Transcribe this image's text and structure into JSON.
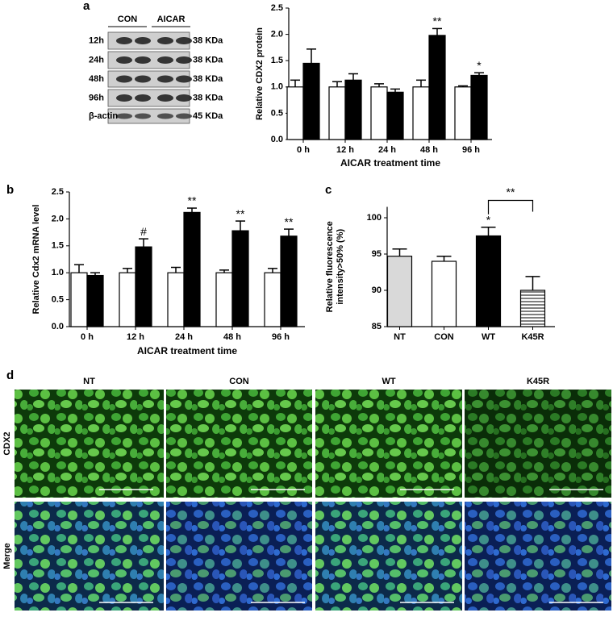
{
  "figure": {
    "panel_labels": [
      "a",
      "b",
      "c",
      "d"
    ],
    "blot": {
      "groups": [
        "CON",
        "AICAR"
      ],
      "rows": [
        "12h",
        "24h",
        "48h",
        "96h",
        "β-actin"
      ],
      "sizes": [
        "38 KDa",
        "38 KDa",
        "38 KDa",
        "38 KDa",
        "45 KDa"
      ]
    },
    "micrographs": {
      "columns": [
        "NT",
        "CON",
        "WT",
        "K45R"
      ],
      "rows": [
        "CDX2",
        "Merge"
      ]
    }
  },
  "chart_data": [
    {
      "type": "bar",
      "ylabel": "Relative CDX2 protein",
      "xlabel": "AICAR treatment time",
      "categories": [
        "0 h",
        "12 h",
        "24 h",
        "48 h",
        "96 h"
      ],
      "series": [
        {
          "color": "#ffffff",
          "values": [
            1.0,
            1.0,
            1.0,
            1.0,
            1.0
          ],
          "errors": [
            0.13,
            0.1,
            0.06,
            0.13,
            0.02
          ],
          "significance": [
            null,
            null,
            null,
            null,
            null
          ]
        },
        {
          "color": "#000000",
          "values": [
            1.45,
            1.13,
            0.9,
            1.98,
            1.22
          ],
          "errors": [
            0.27,
            0.12,
            0.06,
            0.13,
            0.05
          ],
          "significance": [
            null,
            null,
            null,
            "**",
            "*"
          ]
        }
      ],
      "ylim": [
        0,
        2.5
      ],
      "yticks": [
        {
          "value": 0,
          "label": "0.0"
        },
        0.5,
        {
          "value": 1,
          "label": "1.0"
        },
        1.5,
        {
          "value": 2,
          "label": "2.0"
        },
        2.5
      ]
    },
    {
      "type": "bar",
      "ylabel": "Relative Cdx2 mRNA level",
      "xlabel": "AICAR treatment time",
      "categories": [
        "0 h",
        "12 h",
        "24 h",
        "48 h",
        "96 h"
      ],
      "series": [
        {
          "color": "#ffffff",
          "values": [
            1.0,
            1.0,
            1.0,
            1.0,
            1.0
          ],
          "errors": [
            0.15,
            0.08,
            0.1,
            0.05,
            0.08
          ],
          "significance": [
            null,
            null,
            null,
            null,
            null
          ]
        },
        {
          "color": "#000000",
          "values": [
            0.95,
            1.48,
            2.12,
            1.78,
            1.68
          ],
          "errors": [
            0.05,
            0.15,
            0.08,
            0.18,
            0.13
          ],
          "significance": [
            null,
            "#",
            "**",
            "**",
            "**"
          ]
        }
      ],
      "ylim": [
        0,
        2.5
      ],
      "yticks": [
        {
          "value": 0,
          "label": "0.0"
        },
        0.5,
        {
          "value": 1,
          "label": "1.0"
        },
        1.5,
        {
          "value": 2,
          "label": "2.0"
        },
        2.5
      ]
    },
    {
      "type": "bar",
      "ylabel": [
        "Relative fluorescence",
        "intensity>50% (%)"
      ],
      "categories": [
        "NT",
        "CON",
        "WT",
        "K45R"
      ],
      "series": [
        {
          "colors": [
            "#d9d9d9",
            "#ffffff",
            "#000000",
            "#ffffff"
          ],
          "patterns": [
            "solid",
            "solid",
            "solid",
            "horizontal-lines"
          ],
          "values": [
            94.7,
            94.0,
            97.5,
            90.0
          ],
          "errors": [
            1.0,
            0.7,
            1.2,
            1.9
          ],
          "significance": [
            null,
            null,
            "*",
            null
          ]
        }
      ],
      "comparisons": [
        {
          "text": "**",
          "between": [
            "WT",
            "K45R"
          ]
        }
      ],
      "ylim": [
        85,
        101.5
      ],
      "yticks": [
        85,
        90,
        95,
        100
      ]
    }
  ]
}
